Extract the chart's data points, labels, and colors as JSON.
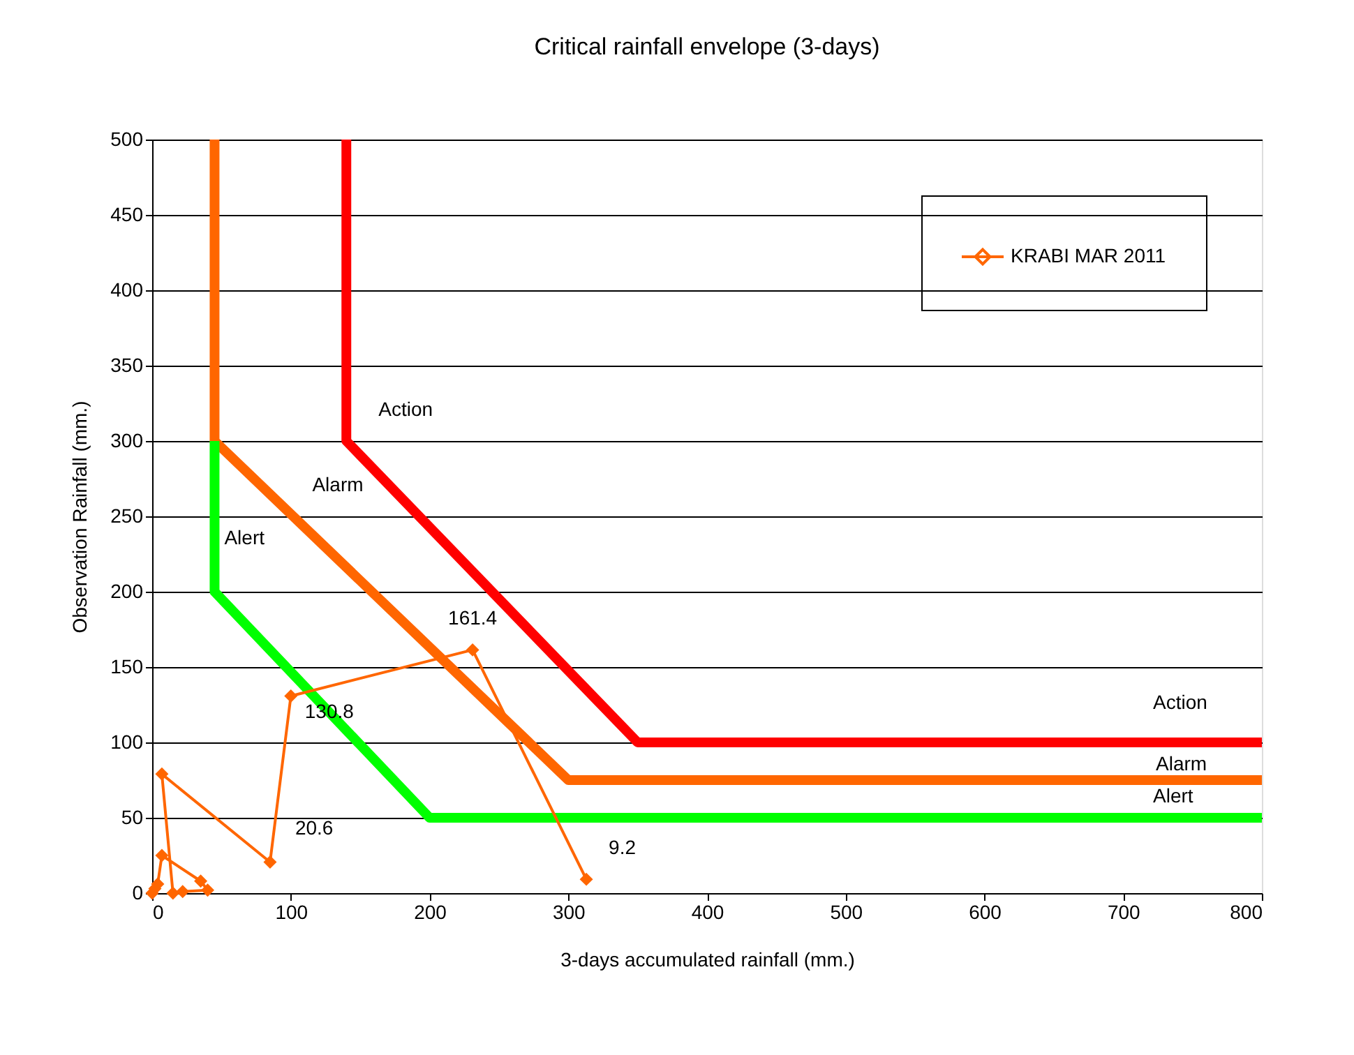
{
  "chart_data": {
    "type": "line",
    "title": "Critical rainfall envelope (3-days)",
    "xlabel": "3-days accumulated rainfall (mm.)",
    "ylabel": "Observation Rainfall (mm.)",
    "xlim": [
      0,
      800
    ],
    "xticks": [
      0,
      100,
      200,
      300,
      400,
      500,
      600,
      700,
      800
    ],
    "ylim": [
      0,
      500
    ],
    "yticks": [
      0,
      50,
      100,
      150,
      200,
      250,
      300,
      350,
      400,
      450,
      500
    ],
    "grid": "y",
    "legend": "top right",
    "line_style": "solid",
    "series": [
      {
        "name": "Action",
        "color": "#ff0000",
        "x": [
          140,
          140,
          350,
          800
        ],
        "values": [
          500,
          300,
          100,
          100
        ],
        "marker": "none"
      },
      {
        "name": "Alarm",
        "color": "#ff6600",
        "x": [
          45,
          45,
          300,
          800
        ],
        "values": [
          500,
          300,
          75,
          75
        ],
        "marker": "none"
      },
      {
        "name": "Alert",
        "color": "#00ff00",
        "x": [
          45,
          45,
          200,
          800
        ],
        "values": [
          300,
          200,
          50,
          50
        ],
        "marker": "none"
      },
      {
        "name": "KRABI MAR 2011",
        "color": "#ff6600",
        "marker": "diamond",
        "x": [
          0,
          2,
          4,
          7,
          35,
          40,
          22,
          15,
          7,
          85,
          100,
          231,
          313
        ],
        "values": [
          0,
          3,
          6,
          25,
          8,
          2,
          1,
          0,
          79,
          20.6,
          130.8,
          161.4,
          9.2
        ],
        "value_labels": [
          null,
          null,
          null,
          null,
          null,
          null,
          null,
          null,
          null,
          "20.6",
          "130.8",
          "161.4",
          "9.2"
        ]
      }
    ]
  }
}
